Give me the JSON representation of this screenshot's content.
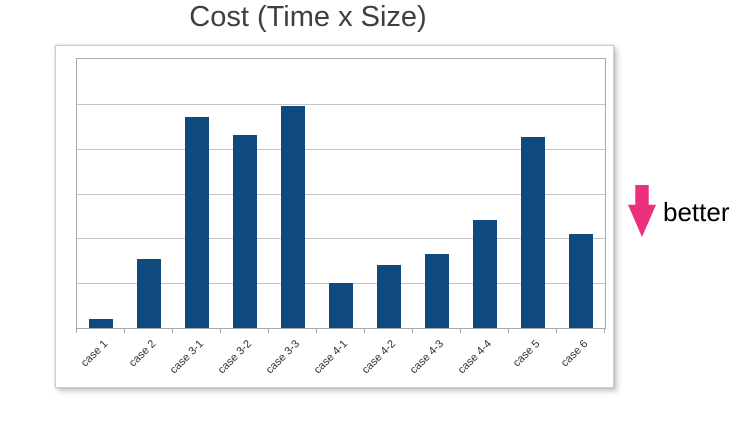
{
  "chart_data": {
    "type": "bar",
    "title": "Cost (Time x Size)",
    "categories": [
      "case 1",
      "case 2",
      "case 3-1",
      "case 3-2",
      "case 3-3",
      "case 4-1",
      "case 4-2",
      "case 4-3",
      "case 4-4",
      "case 5",
      "case 6"
    ],
    "values": [
      0.2,
      1.55,
      4.7,
      4.3,
      4.95,
      1.0,
      1.4,
      1.65,
      2.4,
      4.25,
      2.1
    ],
    "xlabel": "",
    "ylabel": "",
    "ylim": [
      0,
      6
    ],
    "y_gridline_divisions": 6,
    "y_tick_labels_visible": false,
    "grid": "horizontal",
    "legend": "none",
    "bar_color": "#0e4a7d"
  },
  "annotation": {
    "label": "better",
    "arrow_icon": "down-arrow-icon",
    "arrow_color": "#ec2f7f"
  },
  "colors": {
    "title_text": "#3f3f3f",
    "axis_label_text": "#323232",
    "gridline": "#c4c4c4",
    "plot_border": "#a9a9a9",
    "chart_background": "#ffffff",
    "page_background": "#ffffff"
  }
}
